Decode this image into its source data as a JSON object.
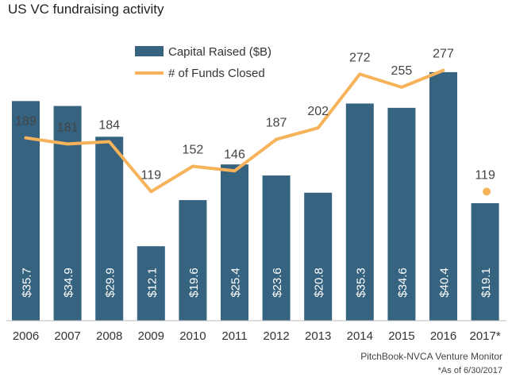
{
  "chart_data": {
    "type": "bar",
    "title": "US VC fundraising activity",
    "categories": [
      "2006",
      "2007",
      "2008",
      "2009",
      "2010",
      "2011",
      "2012",
      "2013",
      "2014",
      "2015",
      "2016",
      "2017*"
    ],
    "series": [
      {
        "name": "Capital Raised ($B)",
        "type": "bar",
        "values": [
          35.7,
          34.9,
          29.9,
          12.1,
          19.6,
          25.4,
          23.6,
          20.8,
          35.3,
          34.6,
          40.4,
          19.1
        ],
        "value_labels": [
          "$35.7",
          "$34.9",
          "$29.9",
          "$12.1",
          "$19.6",
          "$25.4",
          "$23.6",
          "$20.8",
          "$35.3",
          "$34.6",
          "$40.4",
          "$19.1"
        ],
        "color": "#36637f"
      },
      {
        "name": "# of Funds Closed",
        "type": "line",
        "values": [
          189,
          181,
          184,
          119,
          152,
          146,
          187,
          202,
          272,
          255,
          277,
          119
        ],
        "line_through": "2016",
        "standalone_point": "2017*",
        "color": "#f7b35a"
      }
    ],
    "legend_position": "top-center",
    "grid": false
  },
  "source": "PitchBook-NVCA Venture Monitor",
  "footnote": "*As of 6/30/2017"
}
